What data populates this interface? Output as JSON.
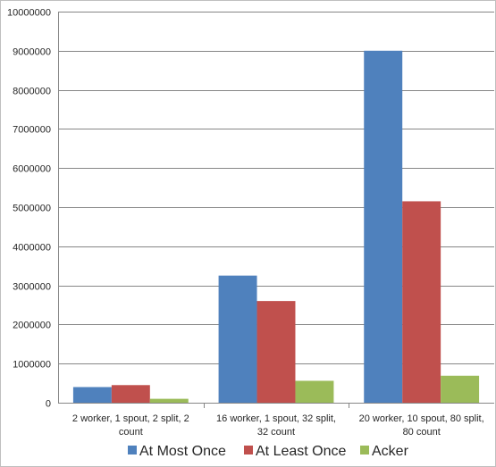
{
  "chart_data": {
    "type": "bar",
    "categories": [
      [
        "2 worker, 1 spout, 2 split, 2",
        "count"
      ],
      [
        "16 worker, 1 spout, 32 split,",
        "32 count"
      ],
      [
        "20 worker, 10 spout, 80 split,",
        "80 count"
      ]
    ],
    "series": [
      {
        "name": "At Most Once",
        "color": "#4f81bd",
        "values": [
          400000,
          3250000,
          9000000
        ]
      },
      {
        "name": "At Least Once",
        "color": "#c0504d",
        "values": [
          450000,
          2600000,
          5150000
        ]
      },
      {
        "name": "Acker",
        "color": "#9bbb59",
        "values": [
          100000,
          560000,
          690000
        ]
      }
    ],
    "ylim": [
      0,
      10000000
    ],
    "yticks": [
      "0",
      "1000000",
      "2000000",
      "3000000",
      "4000000",
      "5000000",
      "6000000",
      "7000000",
      "8000000",
      "9000000",
      "10000000"
    ],
    "grid": true,
    "legend_position": "bottom",
    "gridline_color": "#868686",
    "title": "",
    "xlabel": "",
    "ylabel": ""
  }
}
